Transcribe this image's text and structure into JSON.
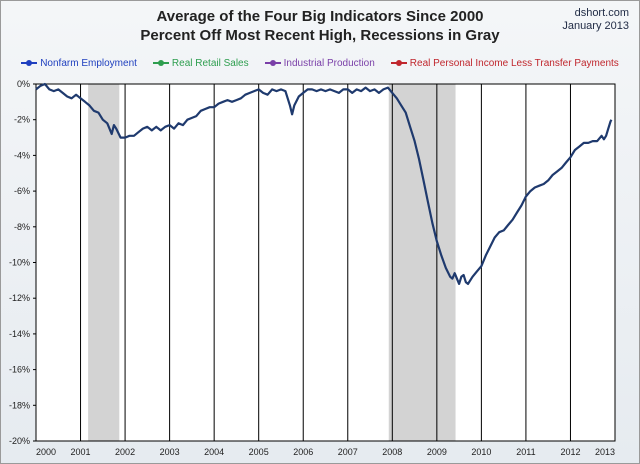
{
  "header": {
    "title_line1": "Average of the Four Big Indicators Since 2000",
    "title_line2": "Percent Off Most Recent High, Recessions in Gray",
    "credit_site": "dshort.com",
    "credit_date": "January 2013"
  },
  "chart_data": {
    "type": "line",
    "title": "Average of the Four Big Indicators Since 2000 / Percent Off Most Recent High, Recessions in Gray",
    "xlim": [
      2000,
      2013
    ],
    "ylim": [
      -20,
      0
    ],
    "x_ticks": [
      "2000",
      "2001",
      "2002",
      "2003",
      "2004",
      "2005",
      "2006",
      "2007",
      "2008",
      "2009",
      "2010",
      "2011",
      "2012",
      "2013"
    ],
    "y_ticks": [
      "0%",
      "-2%",
      "-4%",
      "-6%",
      "-8%",
      "-10%",
      "-12%",
      "-14%",
      "-16%",
      "-18%",
      "-20%"
    ],
    "grid": "vertical yearly lines",
    "recessions": [
      {
        "start": 2001.17,
        "end": 2001.87
      },
      {
        "start": 2007.92,
        "end": 2009.42
      }
    ],
    "legend": [
      {
        "name": "Nonfarm Employment",
        "color": "#1f3fbf"
      },
      {
        "name": "Real Retail Sales",
        "color": "#2e9e4f"
      },
      {
        "name": "Industrial Production",
        "color": "#7a3fa8"
      },
      {
        "name": "Real Personal Income Less Transfer Payments",
        "color": "#c0262d"
      }
    ],
    "series": [
      {
        "name": "Average of the Four Big Indicators",
        "color": "#1f3a6e",
        "points": [
          [
            2000.0,
            -0.3
          ],
          [
            2000.1,
            -0.1
          ],
          [
            2000.2,
            0.0
          ],
          [
            2000.3,
            -0.3
          ],
          [
            2000.4,
            -0.4
          ],
          [
            2000.5,
            -0.3
          ],
          [
            2000.6,
            -0.5
          ],
          [
            2000.7,
            -0.7
          ],
          [
            2000.8,
            -0.8
          ],
          [
            2000.9,
            -0.6
          ],
          [
            2001.0,
            -0.8
          ],
          [
            2001.1,
            -1.0
          ],
          [
            2001.2,
            -1.2
          ],
          [
            2001.3,
            -1.5
          ],
          [
            2001.4,
            -1.6
          ],
          [
            2001.5,
            -2.0
          ],
          [
            2001.6,
            -2.2
          ],
          [
            2001.7,
            -2.8
          ],
          [
            2001.75,
            -2.3
          ],
          [
            2001.8,
            -2.5
          ],
          [
            2001.9,
            -3.0
          ],
          [
            2002.0,
            -3.0
          ],
          [
            2002.1,
            -2.9
          ],
          [
            2002.2,
            -2.9
          ],
          [
            2002.3,
            -2.7
          ],
          [
            2002.4,
            -2.5
          ],
          [
            2002.5,
            -2.4
          ],
          [
            2002.6,
            -2.6
          ],
          [
            2002.7,
            -2.4
          ],
          [
            2002.8,
            -2.6
          ],
          [
            2002.9,
            -2.4
          ],
          [
            2003.0,
            -2.3
          ],
          [
            2003.1,
            -2.5
          ],
          [
            2003.2,
            -2.2
          ],
          [
            2003.3,
            -2.3
          ],
          [
            2003.4,
            -2.0
          ],
          [
            2003.5,
            -1.9
          ],
          [
            2003.6,
            -1.8
          ],
          [
            2003.7,
            -1.5
          ],
          [
            2003.8,
            -1.4
          ],
          [
            2003.9,
            -1.3
          ],
          [
            2004.0,
            -1.3
          ],
          [
            2004.1,
            -1.1
          ],
          [
            2004.2,
            -1.0
          ],
          [
            2004.3,
            -0.9
          ],
          [
            2004.4,
            -1.0
          ],
          [
            2004.5,
            -0.9
          ],
          [
            2004.6,
            -0.8
          ],
          [
            2004.7,
            -0.6
          ],
          [
            2004.8,
            -0.5
          ],
          [
            2004.9,
            -0.4
          ],
          [
            2005.0,
            -0.3
          ],
          [
            2005.1,
            -0.5
          ],
          [
            2005.2,
            -0.6
          ],
          [
            2005.3,
            -0.3
          ],
          [
            2005.4,
            -0.4
          ],
          [
            2005.5,
            -0.3
          ],
          [
            2005.6,
            -0.4
          ],
          [
            2005.7,
            -1.2
          ],
          [
            2005.75,
            -1.7
          ],
          [
            2005.8,
            -1.2
          ],
          [
            2005.9,
            -0.7
          ],
          [
            2006.0,
            -0.5
          ],
          [
            2006.1,
            -0.3
          ],
          [
            2006.2,
            -0.3
          ],
          [
            2006.3,
            -0.4
          ],
          [
            2006.4,
            -0.3
          ],
          [
            2006.5,
            -0.4
          ],
          [
            2006.6,
            -0.3
          ],
          [
            2006.7,
            -0.4
          ],
          [
            2006.8,
            -0.5
          ],
          [
            2006.9,
            -0.3
          ],
          [
            2007.0,
            -0.3
          ],
          [
            2007.1,
            -0.5
          ],
          [
            2007.2,
            -0.3
          ],
          [
            2007.3,
            -0.4
          ],
          [
            2007.4,
            -0.2
          ],
          [
            2007.5,
            -0.4
          ],
          [
            2007.6,
            -0.3
          ],
          [
            2007.7,
            -0.5
          ],
          [
            2007.8,
            -0.3
          ],
          [
            2007.9,
            -0.2
          ],
          [
            2008.0,
            -0.5
          ],
          [
            2008.1,
            -0.8
          ],
          [
            2008.2,
            -1.2
          ],
          [
            2008.3,
            -1.6
          ],
          [
            2008.4,
            -2.4
          ],
          [
            2008.5,
            -3.2
          ],
          [
            2008.6,
            -4.2
          ],
          [
            2008.7,
            -5.4
          ],
          [
            2008.8,
            -6.6
          ],
          [
            2008.9,
            -7.8
          ],
          [
            2009.0,
            -8.8
          ],
          [
            2009.1,
            -9.6
          ],
          [
            2009.2,
            -10.3
          ],
          [
            2009.3,
            -10.8
          ],
          [
            2009.35,
            -10.9
          ],
          [
            2009.4,
            -10.6
          ],
          [
            2009.45,
            -10.9
          ],
          [
            2009.5,
            -11.2
          ],
          [
            2009.55,
            -10.8
          ],
          [
            2009.6,
            -10.7
          ],
          [
            2009.65,
            -11.1
          ],
          [
            2009.7,
            -11.2
          ],
          [
            2009.8,
            -10.8
          ],
          [
            2009.9,
            -10.5
          ],
          [
            2010.0,
            -10.2
          ],
          [
            2010.1,
            -9.6
          ],
          [
            2010.2,
            -9.1
          ],
          [
            2010.3,
            -8.6
          ],
          [
            2010.4,
            -8.3
          ],
          [
            2010.5,
            -8.2
          ],
          [
            2010.6,
            -7.9
          ],
          [
            2010.7,
            -7.6
          ],
          [
            2010.8,
            -7.2
          ],
          [
            2010.9,
            -6.8
          ],
          [
            2011.0,
            -6.3
          ],
          [
            2011.1,
            -6.0
          ],
          [
            2011.2,
            -5.8
          ],
          [
            2011.3,
            -5.7
          ],
          [
            2011.4,
            -5.6
          ],
          [
            2011.5,
            -5.4
          ],
          [
            2011.6,
            -5.1
          ],
          [
            2011.7,
            -4.9
          ],
          [
            2011.8,
            -4.7
          ],
          [
            2011.9,
            -4.4
          ],
          [
            2012.0,
            -4.1
          ],
          [
            2012.1,
            -3.7
          ],
          [
            2012.2,
            -3.5
          ],
          [
            2012.3,
            -3.3
          ],
          [
            2012.4,
            -3.3
          ],
          [
            2012.5,
            -3.2
          ],
          [
            2012.6,
            -3.2
          ],
          [
            2012.7,
            -2.9
          ],
          [
            2012.75,
            -3.1
          ],
          [
            2012.8,
            -2.9
          ],
          [
            2012.85,
            -2.5
          ],
          [
            2012.9,
            -2.1
          ],
          [
            2012.92,
            -2.0
          ]
        ]
      }
    ]
  }
}
